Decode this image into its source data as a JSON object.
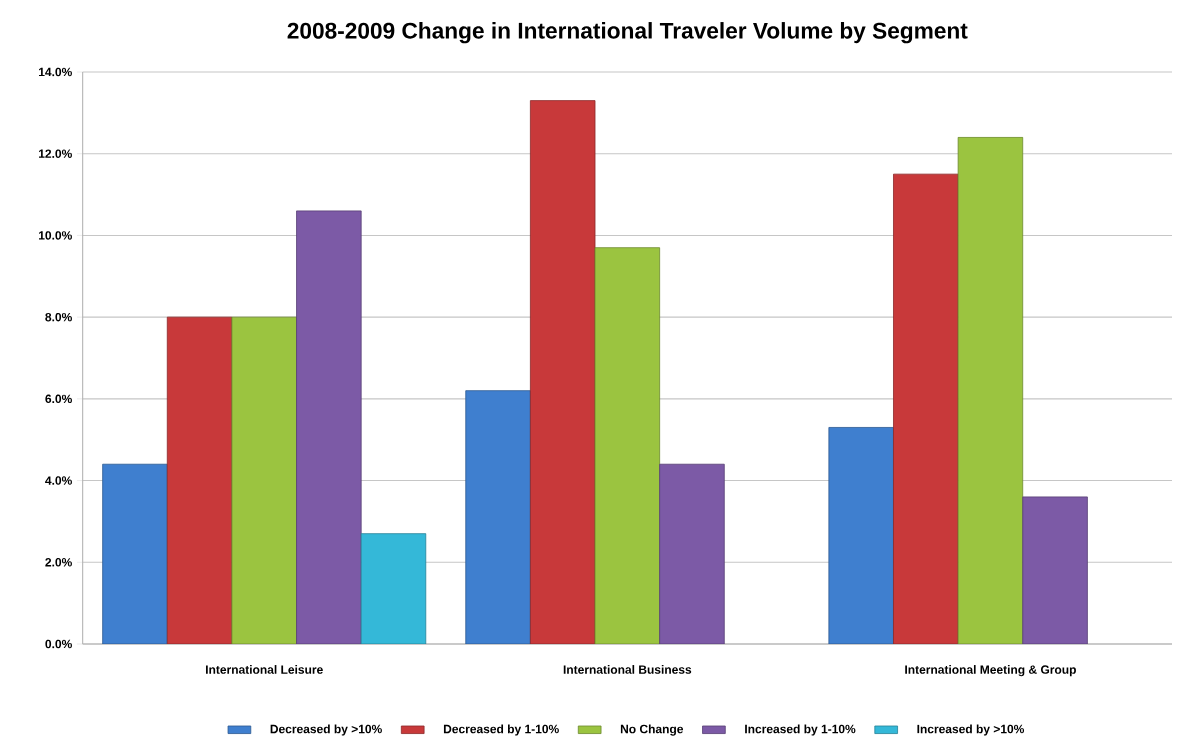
{
  "chart_data": {
    "type": "bar",
    "title": "2008-2009 Change in International Traveler Volume by Segment",
    "categories": [
      "International Leisure",
      "International Business",
      "International Meeting & Group"
    ],
    "series": [
      {
        "name": "Decreased by >10%",
        "color": "#3f7fcf",
        "values": [
          4.4,
          6.2,
          5.3
        ]
      },
      {
        "name": "Decreased by 1-10%",
        "color": "#c8393a",
        "values": [
          8.0,
          13.3,
          11.5
        ]
      },
      {
        "name": "No Change",
        "color": "#9bc440",
        "values": [
          8.0,
          9.7,
          12.4
        ]
      },
      {
        "name": "Increased by 1-10%",
        "color": "#7c5aa6",
        "values": [
          10.6,
          4.4,
          3.6
        ]
      },
      {
        "name": "Increased by >10%",
        "color": "#34b8d8",
        "values": [
          2.7,
          null,
          null
        ]
      }
    ],
    "ylim": [
      0,
      14
    ],
    "yticks": [
      {
        "value": 0,
        "label": "0.0%"
      },
      {
        "value": 2,
        "label": "2.0%"
      },
      {
        "value": 4,
        "label": "4.0%"
      },
      {
        "value": 6,
        "label": "6.0%"
      },
      {
        "value": 8,
        "label": "8.0%"
      },
      {
        "value": 10,
        "label": "10.0%"
      },
      {
        "value": 12,
        "label": "12.0%"
      },
      {
        "value": 14,
        "label": "14.0%"
      }
    ],
    "grid": "y",
    "legend": "bottom"
  }
}
